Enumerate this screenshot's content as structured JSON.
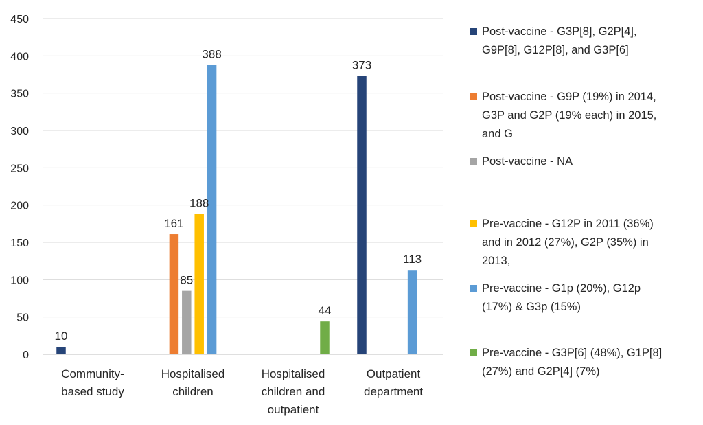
{
  "chart_data": {
    "type": "bar",
    "title": "",
    "xlabel": "",
    "ylabel": "",
    "ylim": [
      0,
      450
    ],
    "yticks": [
      0,
      50,
      100,
      150,
      200,
      250,
      300,
      350,
      400,
      450
    ],
    "grid": true,
    "legend_position": "right",
    "categories": [
      [
        "Community-",
        "based study"
      ],
      [
        "Hospitalised",
        "children"
      ],
      [
        "Hospitalised",
        "children and",
        "outpatient"
      ],
      [
        "Outpatient",
        "department"
      ]
    ],
    "series": [
      {
        "name": "Post-vaccine - G3P[8], G2P[4], G9P[8], G12P[8], and G3P[6]",
        "legend_lines": [
          "Post-vaccine - G3P[8], G2P[4],",
          "G9P[8], G12P[8], and G3P[6]"
        ],
        "color": "#264478",
        "values": [
          10,
          null,
          null,
          373
        ]
      },
      {
        "name": "Post-vaccine - G9P (19%) in 2014, G3P and G2P (19% each) in 2015, and G",
        "legend_lines": [
          "Post-vaccine - G9P (19%) in 2014,",
          "G3P and G2P (19% each) in 2015,",
          "and G"
        ],
        "color": "#ED7D31",
        "values": [
          null,
          161,
          null,
          null
        ]
      },
      {
        "name": "Post-vaccine - NA",
        "legend_lines": [
          "Post-vaccine - NA"
        ],
        "color": "#A5A5A5",
        "values": [
          null,
          85,
          null,
          null
        ]
      },
      {
        "name": "Pre-vaccine  - G12P in 2011 (36%) and in 2012 (27%), G2P (35%) in 2013,",
        "legend_lines": [
          "Pre-vaccine  - G12P in 2011 (36%)",
          "and in 2012 (27%), G2P (35%) in",
          "2013,"
        ],
        "color": "#FFC000",
        "values": [
          null,
          188,
          null,
          null
        ]
      },
      {
        "name": "Pre-vaccine  - G1p (20%), G12p (17%) & G3p (15%)",
        "legend_lines": [
          "Pre-vaccine  - G1p (20%), G12p",
          "(17%) & G3p (15%)"
        ],
        "color": "#5B9BD5",
        "values": [
          null,
          388,
          null,
          113
        ]
      },
      {
        "name": "Pre-vaccine  - G3P[6] (48%), G1P[8] (27%) and G2P[4] (7%)",
        "legend_lines": [
          "Pre-vaccine  - G3P[6] (48%), G1P[8]",
          "(27%) and G2P[4] (7%)"
        ],
        "color": "#70AD47",
        "values": [
          null,
          null,
          44,
          null
        ]
      }
    ]
  }
}
